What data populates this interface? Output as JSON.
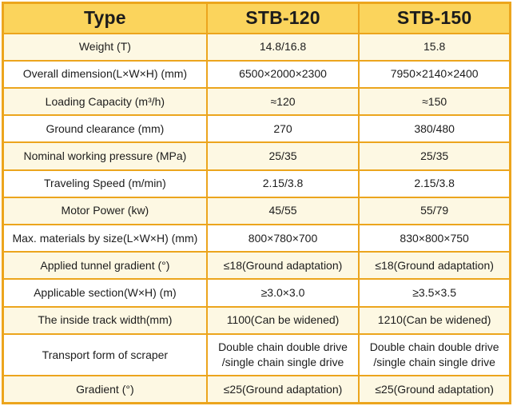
{
  "colors": {
    "border": "#ECA51D",
    "header_bg": "#FBD45C",
    "row_alt_bg": "#FDF8E3",
    "row_bg": "#FFFFFF",
    "text": "#1C1C1C"
  },
  "table": {
    "header": [
      "Type",
      "STB-120",
      "STB-150"
    ],
    "rows": [
      [
        "Weight (T)",
        "14.8/16.8",
        "15.8"
      ],
      [
        "Overall dimension(L×W×H) (mm)",
        "6500×2000×2300",
        "7950×2140×2400"
      ],
      [
        "Loading Capacity (m³/h)",
        "≈120",
        "≈150"
      ],
      [
        "Ground clearance (mm)",
        "270",
        "380/480"
      ],
      [
        "Nominal working pressure (MPa)",
        "25/35",
        "25/35"
      ],
      [
        "Traveling Speed (m/min)",
        "2.15/3.8",
        "2.15/3.8"
      ],
      [
        "Motor Power (kw)",
        "45/55",
        "55/79"
      ],
      [
        "Max. materials by size(L×W×H) (mm)",
        "800×780×700",
        "830×800×750"
      ],
      [
        "Applied tunnel gradient   (°)",
        "≤18(Ground adaptation)",
        "≤18(Ground adaptation)"
      ],
      [
        "Applicable section(W×H) (m)",
        "≥3.0×3.0",
        "≥3.5×3.5"
      ],
      [
        "The inside track width(mm)",
        "1100(Can be widened)",
        "1210(Can be widened)"
      ],
      [
        "Transport form of scraper",
        "Double chain double drive\n/single chain single drive",
        "Double chain double drive\n/single chain single drive"
      ],
      [
        "Gradient (°)",
        "≤25(Ground adaptation)",
        "≤25(Ground adaptation)"
      ]
    ]
  }
}
